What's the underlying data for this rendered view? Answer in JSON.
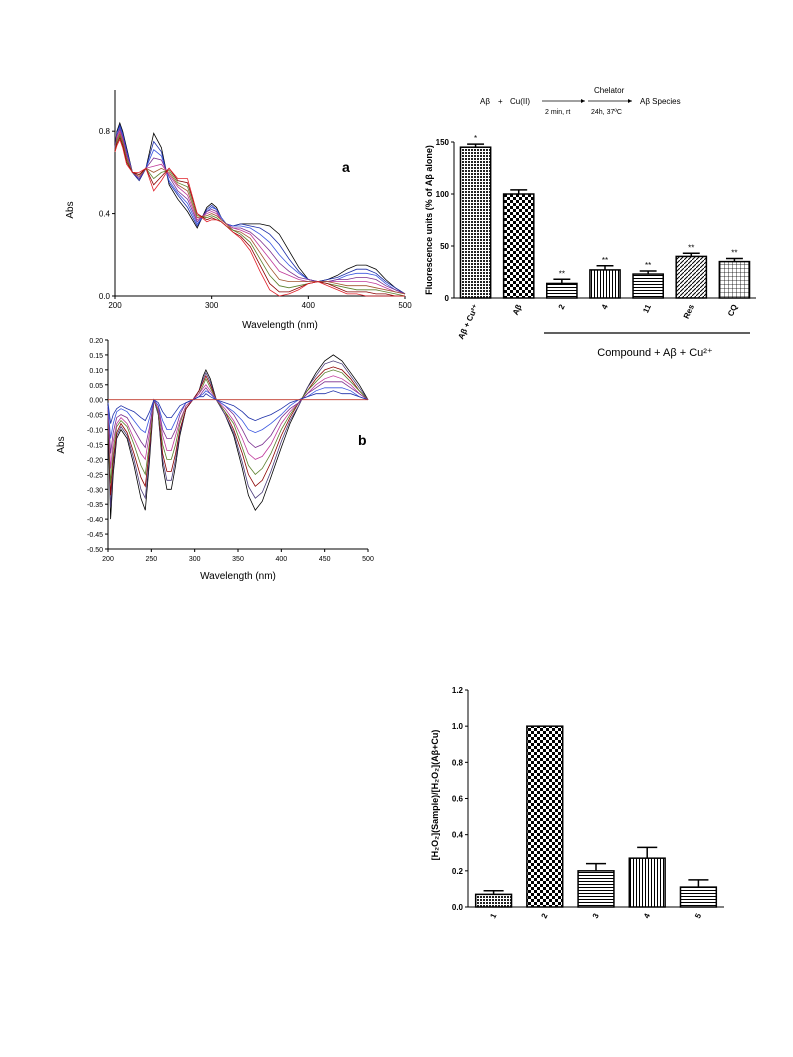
{
  "chart_data": [
    {
      "type": "line",
      "panel_label": "a",
      "xlabel": "Wavelength (nm)",
      "ylabel": "Abs",
      "xlim": [
        200,
        500
      ],
      "ylim": [
        0,
        1.0
      ],
      "xticks": [
        200,
        300,
        400,
        500
      ],
      "yticks": [
        0.0,
        0.4,
        0.8
      ],
      "x": [
        200,
        202,
        205,
        208,
        212,
        218,
        225,
        232,
        240,
        248,
        256,
        265,
        275,
        285,
        295,
        300,
        305,
        310,
        315,
        322,
        330,
        340,
        350,
        360,
        370,
        380,
        390,
        400,
        410,
        420,
        430,
        440,
        450,
        460,
        470,
        480,
        490,
        500
      ],
      "series": [
        {
          "name": "",
          "color": "#000000",
          "values": [
            0.72,
            0.8,
            0.84,
            0.8,
            0.72,
            0.6,
            0.56,
            0.62,
            0.79,
            0.72,
            0.54,
            0.47,
            0.41,
            0.33,
            0.43,
            0.45,
            0.43,
            0.38,
            0.35,
            0.34,
            0.35,
            0.35,
            0.35,
            0.34,
            0.3,
            0.22,
            0.14,
            0.08,
            0.07,
            0.08,
            0.1,
            0.13,
            0.15,
            0.15,
            0.13,
            0.08,
            0.04,
            0.01
          ]
        },
        {
          "name": "",
          "color": "#1d2fa8",
          "values": [
            0.72,
            0.79,
            0.83,
            0.79,
            0.71,
            0.6,
            0.56,
            0.62,
            0.75,
            0.7,
            0.55,
            0.49,
            0.43,
            0.34,
            0.42,
            0.44,
            0.42,
            0.38,
            0.35,
            0.34,
            0.35,
            0.34,
            0.33,
            0.3,
            0.25,
            0.18,
            0.12,
            0.08,
            0.07,
            0.08,
            0.09,
            0.11,
            0.13,
            0.13,
            0.11,
            0.07,
            0.04,
            0.01
          ]
        },
        {
          "name": "",
          "color": "#3a56e0",
          "values": [
            0.72,
            0.79,
            0.82,
            0.78,
            0.7,
            0.6,
            0.57,
            0.62,
            0.71,
            0.68,
            0.56,
            0.5,
            0.45,
            0.35,
            0.41,
            0.43,
            0.42,
            0.38,
            0.35,
            0.34,
            0.34,
            0.33,
            0.3,
            0.26,
            0.2,
            0.15,
            0.11,
            0.08,
            0.07,
            0.07,
            0.08,
            0.1,
            0.11,
            0.11,
            0.1,
            0.06,
            0.03,
            0.01
          ]
        },
        {
          "name": "",
          "color": "#7a2f8f",
          "values": [
            0.72,
            0.78,
            0.81,
            0.77,
            0.69,
            0.6,
            0.57,
            0.62,
            0.67,
            0.66,
            0.58,
            0.51,
            0.47,
            0.36,
            0.41,
            0.42,
            0.41,
            0.37,
            0.35,
            0.33,
            0.33,
            0.31,
            0.27,
            0.22,
            0.16,
            0.12,
            0.09,
            0.08,
            0.07,
            0.07,
            0.08,
            0.08,
            0.09,
            0.09,
            0.08,
            0.05,
            0.03,
            0.01
          ]
        },
        {
          "name": "",
          "color": "#c0399b",
          "values": [
            0.71,
            0.77,
            0.8,
            0.76,
            0.68,
            0.6,
            0.58,
            0.62,
            0.63,
            0.64,
            0.59,
            0.53,
            0.49,
            0.37,
            0.4,
            0.41,
            0.4,
            0.37,
            0.35,
            0.33,
            0.32,
            0.3,
            0.24,
            0.18,
            0.12,
            0.1,
            0.08,
            0.07,
            0.07,
            0.07,
            0.07,
            0.07,
            0.07,
            0.07,
            0.06,
            0.04,
            0.02,
            0.01
          ]
        },
        {
          "name": "",
          "color": "#a0522d",
          "values": [
            0.71,
            0.76,
            0.79,
            0.75,
            0.67,
            0.6,
            0.58,
            0.62,
            0.6,
            0.62,
            0.6,
            0.54,
            0.51,
            0.38,
            0.39,
            0.4,
            0.39,
            0.37,
            0.35,
            0.32,
            0.31,
            0.28,
            0.21,
            0.14,
            0.08,
            0.07,
            0.07,
            0.07,
            0.07,
            0.07,
            0.06,
            0.05,
            0.05,
            0.05,
            0.04,
            0.03,
            0.02,
            0.01
          ]
        },
        {
          "name": "",
          "color": "#5a7f2a",
          "values": [
            0.7,
            0.75,
            0.78,
            0.74,
            0.66,
            0.6,
            0.59,
            0.62,
            0.57,
            0.6,
            0.61,
            0.55,
            0.53,
            0.39,
            0.38,
            0.39,
            0.38,
            0.36,
            0.34,
            0.32,
            0.3,
            0.26,
            0.18,
            0.1,
            0.05,
            0.04,
            0.05,
            0.06,
            0.07,
            0.06,
            0.05,
            0.04,
            0.03,
            0.03,
            0.03,
            0.02,
            0.01,
            0.0
          ]
        },
        {
          "name": "",
          "color": "#8b0000",
          "values": [
            0.7,
            0.74,
            0.77,
            0.73,
            0.65,
            0.6,
            0.59,
            0.62,
            0.54,
            0.58,
            0.62,
            0.56,
            0.55,
            0.4,
            0.37,
            0.38,
            0.37,
            0.36,
            0.34,
            0.31,
            0.29,
            0.24,
            0.15,
            0.06,
            0.02,
            0.02,
            0.04,
            0.06,
            0.07,
            0.06,
            0.04,
            0.02,
            0.02,
            0.02,
            0.01,
            0.01,
            0.0,
            0.0
          ]
        },
        {
          "name": "",
          "color": "#e0202a",
          "values": [
            0.7,
            0.73,
            0.76,
            0.72,
            0.64,
            0.6,
            0.6,
            0.62,
            0.51,
            0.56,
            0.62,
            0.57,
            0.57,
            0.4,
            0.36,
            0.37,
            0.37,
            0.36,
            0.34,
            0.31,
            0.28,
            0.22,
            0.12,
            0.03,
            0.0,
            0.01,
            0.03,
            0.06,
            0.07,
            0.05,
            0.03,
            0.01,
            0.01,
            0.0,
            0.0,
            0.0,
            0.0,
            0.0
          ]
        }
      ]
    },
    {
      "type": "line",
      "panel_label": "b",
      "xlabel": "Wavelength (nm)",
      "ylabel": "Abs",
      "xlim": [
        200,
        500
      ],
      "ylim": [
        -0.5,
        0.2
      ],
      "xticks": [
        200,
        250,
        300,
        350,
        400,
        450,
        500
      ],
      "yticks": [
        "0.20",
        "0.15",
        "0.10",
        "0.05",
        "0.00",
        "-0.05",
        "-0.10",
        "-0.15",
        "-0.20",
        "-0.25",
        "-0.30",
        "-0.35",
        "-0.40",
        "-0.45",
        "-0.50"
      ],
      "x": [
        200,
        203,
        206,
        210,
        215,
        222,
        230,
        238,
        243,
        248,
        253,
        258,
        263,
        268,
        273,
        278,
        283,
        290,
        298,
        305,
        310,
        313,
        318,
        325,
        335,
        345,
        355,
        362,
        370,
        378,
        388,
        400,
        410,
        420,
        430,
        440,
        450,
        460,
        470,
        480,
        490,
        500
      ],
      "series": [
        {
          "name": "",
          "color": "#000000",
          "values": [
            -0.05,
            -0.4,
            -0.25,
            -0.13,
            -0.1,
            -0.13,
            -0.22,
            -0.33,
            -0.37,
            -0.2,
            0.0,
            -0.05,
            -0.22,
            -0.3,
            -0.3,
            -0.22,
            -0.12,
            -0.03,
            0.0,
            0.03,
            0.08,
            0.1,
            0.07,
            0.0,
            -0.05,
            -0.12,
            -0.23,
            -0.32,
            -0.37,
            -0.34,
            -0.26,
            -0.16,
            -0.08,
            -0.02,
            0.04,
            0.09,
            0.13,
            0.15,
            0.13,
            0.09,
            0.05,
            0.0
          ]
        },
        {
          "name": "",
          "color": "#4a3b7a",
          "values": [
            -0.05,
            -0.36,
            -0.22,
            -0.12,
            -0.09,
            -0.12,
            -0.2,
            -0.3,
            -0.33,
            -0.18,
            0.0,
            -0.05,
            -0.2,
            -0.27,
            -0.27,
            -0.2,
            -0.11,
            -0.03,
            0.0,
            0.03,
            0.07,
            0.09,
            0.06,
            0.0,
            -0.05,
            -0.11,
            -0.21,
            -0.29,
            -0.33,
            -0.31,
            -0.24,
            -0.14,
            -0.07,
            -0.02,
            0.04,
            0.08,
            0.12,
            0.13,
            0.12,
            0.08,
            0.04,
            0.0
          ]
        },
        {
          "name": "",
          "color": "#8b0000",
          "values": [
            -0.04,
            -0.32,
            -0.2,
            -0.11,
            -0.08,
            -0.11,
            -0.18,
            -0.26,
            -0.29,
            -0.16,
            0.0,
            -0.04,
            -0.18,
            -0.24,
            -0.24,
            -0.18,
            -0.1,
            -0.03,
            0.0,
            0.03,
            0.06,
            0.08,
            0.05,
            0.0,
            -0.04,
            -0.1,
            -0.18,
            -0.25,
            -0.29,
            -0.27,
            -0.21,
            -0.12,
            -0.06,
            -0.01,
            0.03,
            0.07,
            0.1,
            0.11,
            0.1,
            0.07,
            0.03,
            0.0
          ]
        },
        {
          "name": "",
          "color": "#5a7f2a",
          "values": [
            -0.04,
            -0.28,
            -0.17,
            -0.09,
            -0.07,
            -0.09,
            -0.15,
            -0.22,
            -0.25,
            -0.14,
            0.0,
            -0.04,
            -0.15,
            -0.2,
            -0.2,
            -0.15,
            -0.08,
            -0.02,
            0.0,
            0.02,
            0.05,
            0.07,
            0.04,
            0.0,
            -0.04,
            -0.08,
            -0.16,
            -0.22,
            -0.25,
            -0.23,
            -0.18,
            -0.1,
            -0.05,
            -0.01,
            0.03,
            0.06,
            0.09,
            0.1,
            0.09,
            0.06,
            0.03,
            0.0
          ]
        },
        {
          "name": "",
          "color": "#c0399b",
          "values": [
            -0.03,
            -0.23,
            -0.14,
            -0.08,
            -0.06,
            -0.08,
            -0.13,
            -0.18,
            -0.2,
            -0.11,
            0.0,
            -0.03,
            -0.12,
            -0.17,
            -0.17,
            -0.12,
            -0.07,
            -0.02,
            0.0,
            0.02,
            0.04,
            0.05,
            0.03,
            0.0,
            -0.03,
            -0.07,
            -0.13,
            -0.18,
            -0.2,
            -0.19,
            -0.15,
            -0.08,
            -0.04,
            -0.01,
            0.02,
            0.05,
            0.07,
            0.08,
            0.07,
            0.05,
            0.02,
            0.0
          ]
        },
        {
          "name": "",
          "color": "#7a2f8f",
          "values": [
            -0.02,
            -0.18,
            -0.11,
            -0.06,
            -0.05,
            -0.06,
            -0.1,
            -0.14,
            -0.16,
            -0.09,
            0.0,
            -0.02,
            -0.1,
            -0.13,
            -0.13,
            -0.1,
            -0.05,
            -0.01,
            0.0,
            0.01,
            0.03,
            0.04,
            0.02,
            0.0,
            -0.02,
            -0.05,
            -0.1,
            -0.14,
            -0.16,
            -0.15,
            -0.12,
            -0.06,
            -0.03,
            -0.01,
            0.02,
            0.04,
            0.06,
            0.06,
            0.06,
            0.04,
            0.02,
            0.0
          ]
        },
        {
          "name": "",
          "color": "#3a56e0",
          "values": [
            -0.02,
            -0.13,
            -0.08,
            -0.04,
            -0.03,
            -0.04,
            -0.07,
            -0.1,
            -0.11,
            -0.06,
            0.0,
            -0.02,
            -0.07,
            -0.1,
            -0.1,
            -0.07,
            -0.04,
            -0.01,
            0.0,
            0.01,
            0.02,
            0.03,
            0.02,
            0.0,
            -0.02,
            -0.04,
            -0.07,
            -0.1,
            -0.11,
            -0.1,
            -0.08,
            -0.05,
            -0.02,
            0.0,
            0.01,
            0.03,
            0.04,
            0.04,
            0.04,
            0.03,
            0.01,
            0.0
          ]
        },
        {
          "name": "",
          "color": "#1d2fa8",
          "values": [
            -0.01,
            -0.08,
            -0.05,
            -0.03,
            -0.02,
            -0.03,
            -0.04,
            -0.06,
            -0.07,
            -0.04,
            0.0,
            -0.01,
            -0.04,
            -0.06,
            -0.06,
            -0.04,
            -0.02,
            -0.01,
            0.0,
            0.01,
            0.01,
            0.02,
            0.01,
            0.0,
            -0.01,
            -0.02,
            -0.04,
            -0.06,
            -0.07,
            -0.06,
            -0.05,
            -0.03,
            -0.01,
            0.0,
            0.01,
            0.02,
            0.02,
            0.03,
            0.02,
            0.02,
            0.01,
            0.0
          ]
        },
        {
          "name": "",
          "color": "#c0392b",
          "values": [
            0,
            0,
            0,
            0,
            0,
            0,
            0,
            0,
            0,
            0,
            0,
            0,
            0,
            0,
            0,
            0,
            0,
            0,
            0,
            0,
            0,
            0,
            0,
            0,
            0,
            0,
            0,
            0,
            0,
            0,
            0,
            0,
            0,
            0,
            0,
            0,
            0,
            0,
            0,
            0,
            0,
            0
          ]
        }
      ]
    },
    {
      "type": "bar",
      "scheme": {
        "abeta": "Aβ",
        "plus1": "+",
        "cu": "Cu(II)",
        "above_arrow2": "Chelator",
        "below_arrow1": "2 min, rt",
        "below_arrow2": "24h, 37ºC",
        "product": "Aβ Species"
      },
      "ylabel": "Fluorescence units (% of Aβ alone)",
      "ylim": [
        0,
        150
      ],
      "yticks": [
        0,
        50,
        100,
        150
      ],
      "categories": [
        "Aβ + Cu²⁺",
        "Aβ",
        "2",
        "4",
        "11",
        "Res",
        "CQ"
      ],
      "values": [
        145,
        100,
        14,
        27,
        23,
        40,
        35
      ],
      "errors": [
        3,
        4,
        4,
        4,
        3,
        3,
        3
      ],
      "significance": [
        "*",
        "",
        "**",
        "**",
        "**",
        "**",
        "**"
      ],
      "patterns": [
        "dense",
        "checker",
        "hstripe",
        "vstripe",
        "hstripe",
        "diag",
        "grid"
      ],
      "group_label": "Compound + Aβ + Cu²⁺"
    },
    {
      "type": "bar",
      "ylabel": "[H₂O₂](Sample)/[H₂O₂](Aβ+Cu)",
      "ylim": [
        0,
        1.2
      ],
      "yticks": [
        "0.0",
        "0.2",
        "0.4",
        "0.6",
        "0.8",
        "1.0",
        "1.2"
      ],
      "categories": [
        "1",
        "2",
        "3",
        "4",
        "5"
      ],
      "values": [
        0.07,
        1.0,
        0.2,
        0.27,
        0.11
      ],
      "errors": [
        0.02,
        0.0,
        0.04,
        0.06,
        0.04
      ],
      "patterns": [
        "dense",
        "checker",
        "hstripe",
        "vstripe",
        "hstripe"
      ]
    }
  ]
}
